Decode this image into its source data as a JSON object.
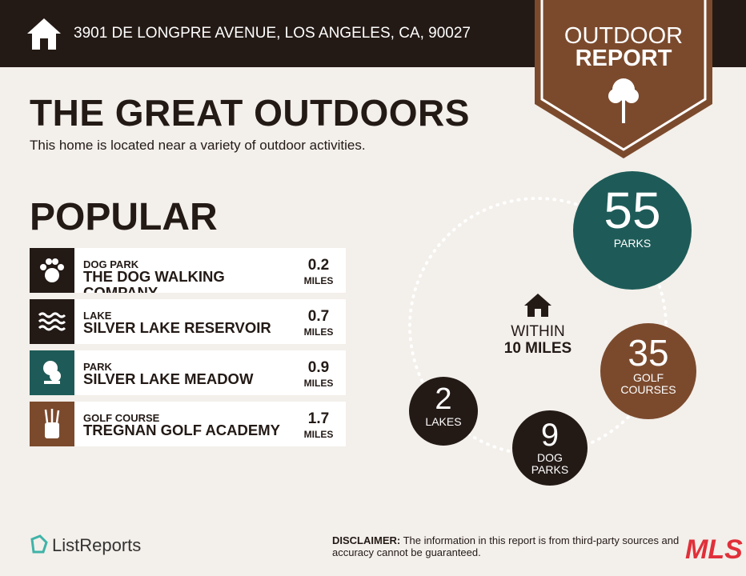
{
  "header": {
    "address": "3901 DE LONGPRE AVENUE, LOS ANGELES, CA, 90027",
    "badge": {
      "line1": "OUTDOOR",
      "line2": "REPORT"
    }
  },
  "title": "THE GREAT OUTDOORS",
  "subtitle": "This home is located near a variety of outdoor activities.",
  "popular": {
    "heading": "POPULAR",
    "items": [
      {
        "category": "DOG PARK",
        "name": "THE DOG WALKING COMPANY",
        "distance": "0.2",
        "unit": "MILES"
      },
      {
        "category": "LAKE",
        "name": "SILVER LAKE RESERVOIR",
        "distance": "0.7",
        "unit": "MILES"
      },
      {
        "category": "PARK",
        "name": "SILVER LAKE MEADOW",
        "distance": "0.9",
        "unit": "MILES"
      },
      {
        "category": "GOLF COURSE",
        "name": "TREGNAN GOLF ACADEMY",
        "distance": "1.7",
        "unit": "MILES"
      }
    ]
  },
  "radius": {
    "line1": "WITHIN",
    "line2": "10 MILES"
  },
  "counts": [
    {
      "count": "55",
      "label": "PARKS"
    },
    {
      "count": "35",
      "label": "GOLF COURSES"
    },
    {
      "count": "9",
      "label": "DOG PARKS"
    },
    {
      "count": "2",
      "label": "LAKES"
    }
  ],
  "footer": {
    "brand": "ListReports",
    "disclaimer_label": "DISCLAIMER:",
    "disclaimer": "The information in this report is from third-party sources and accuracy cannot be guaranteed.",
    "mls": "MLS"
  }
}
